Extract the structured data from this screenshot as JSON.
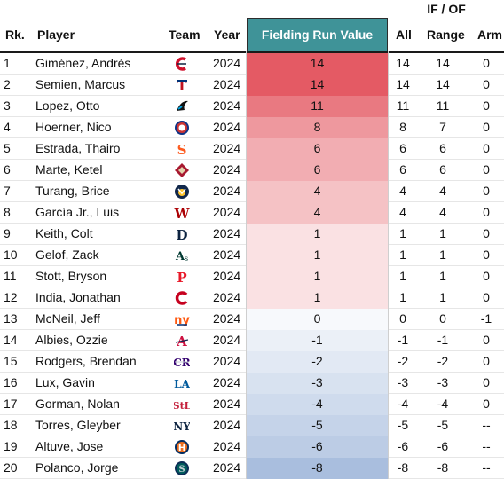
{
  "header": {
    "group_label": "IF / OF",
    "rank": "Rk.",
    "player": "Player",
    "team": "Team",
    "year": "Year",
    "frv": "Fielding Run Value",
    "all": "All",
    "range": "Range",
    "arm": "Arm"
  },
  "colors": {
    "header_accent": "#3f9398",
    "positive_max": "#e45a64",
    "neutral": "#ffffff",
    "negative_max": "#a9bede"
  },
  "rows": [
    {
      "rank": "1",
      "player": "Giménez, Andrés",
      "team_icon": "guardians-logo-icon",
      "year": "2024",
      "frv": "14",
      "all": "14",
      "range": "14",
      "arm": "0"
    },
    {
      "rank": "2",
      "player": "Semien, Marcus",
      "team_icon": "rangers-logo-icon",
      "year": "2024",
      "frv": "14",
      "all": "14",
      "range": "14",
      "arm": "0"
    },
    {
      "rank": "3",
      "player": "Lopez, Otto",
      "team_icon": "marlins-logo-icon",
      "year": "2024",
      "frv": "11",
      "all": "11",
      "range": "11",
      "arm": "0"
    },
    {
      "rank": "4",
      "player": "Hoerner, Nico",
      "team_icon": "cubs-logo-icon",
      "year": "2024",
      "frv": "8",
      "all": "8",
      "range": "7",
      "arm": "0"
    },
    {
      "rank": "5",
      "player": "Estrada, Thairo",
      "team_icon": "giants-logo-icon",
      "year": "2024",
      "frv": "6",
      "all": "6",
      "range": "6",
      "arm": "0"
    },
    {
      "rank": "6",
      "player": "Marte, Ketel",
      "team_icon": "diamondbacks-logo-icon",
      "year": "2024",
      "frv": "6",
      "all": "6",
      "range": "6",
      "arm": "0"
    },
    {
      "rank": "7",
      "player": "Turang, Brice",
      "team_icon": "brewers-logo-icon",
      "year": "2024",
      "frv": "4",
      "all": "4",
      "range": "4",
      "arm": "0"
    },
    {
      "rank": "8",
      "player": "García Jr., Luis",
      "team_icon": "nationals-logo-icon",
      "year": "2024",
      "frv": "4",
      "all": "4",
      "range": "4",
      "arm": "0"
    },
    {
      "rank": "9",
      "player": "Keith, Colt",
      "team_icon": "tigers-logo-icon",
      "year": "2024",
      "frv": "1",
      "all": "1",
      "range": "1",
      "arm": "0"
    },
    {
      "rank": "10",
      "player": "Gelof, Zack",
      "team_icon": "athletics-logo-icon",
      "year": "2024",
      "frv": "1",
      "all": "1",
      "range": "1",
      "arm": "0"
    },
    {
      "rank": "11",
      "player": "Stott, Bryson",
      "team_icon": "phillies-logo-icon",
      "year": "2024",
      "frv": "1",
      "all": "1",
      "range": "1",
      "arm": "0"
    },
    {
      "rank": "12",
      "player": "India, Jonathan",
      "team_icon": "reds-logo-icon",
      "year": "2024",
      "frv": "1",
      "all": "1",
      "range": "1",
      "arm": "0"
    },
    {
      "rank": "13",
      "player": "McNeil, Jeff",
      "team_icon": "mets-logo-icon",
      "year": "2024",
      "frv": "0",
      "all": "0",
      "range": "0",
      "arm": "-1"
    },
    {
      "rank": "14",
      "player": "Albies, Ozzie",
      "team_icon": "braves-logo-icon",
      "year": "2024",
      "frv": "-1",
      "all": "-1",
      "range": "-1",
      "arm": "0"
    },
    {
      "rank": "15",
      "player": "Rodgers, Brendan",
      "team_icon": "rockies-logo-icon",
      "year": "2024",
      "frv": "-2",
      "all": "-2",
      "range": "-2",
      "arm": "0"
    },
    {
      "rank": "16",
      "player": "Lux, Gavin",
      "team_icon": "dodgers-logo-icon",
      "year": "2024",
      "frv": "-3",
      "all": "-3",
      "range": "-3",
      "arm": "0"
    },
    {
      "rank": "17",
      "player": "Gorman, Nolan",
      "team_icon": "cardinals-logo-icon",
      "year": "2024",
      "frv": "-4",
      "all": "-4",
      "range": "-4",
      "arm": "0"
    },
    {
      "rank": "18",
      "player": "Torres, Gleyber",
      "team_icon": "yankees-logo-icon",
      "year": "2024",
      "frv": "-5",
      "all": "-5",
      "range": "-5",
      "arm": "--"
    },
    {
      "rank": "19",
      "player": "Altuve, Jose",
      "team_icon": "astros-logo-icon",
      "year": "2024",
      "frv": "-6",
      "all": "-6",
      "range": "-6",
      "arm": "--"
    },
    {
      "rank": "20",
      "player": "Polanco, Jorge",
      "team_icon": "mariners-logo-icon",
      "year": "2024",
      "frv": "-8",
      "all": "-8",
      "range": "-8",
      "arm": "--"
    }
  ]
}
